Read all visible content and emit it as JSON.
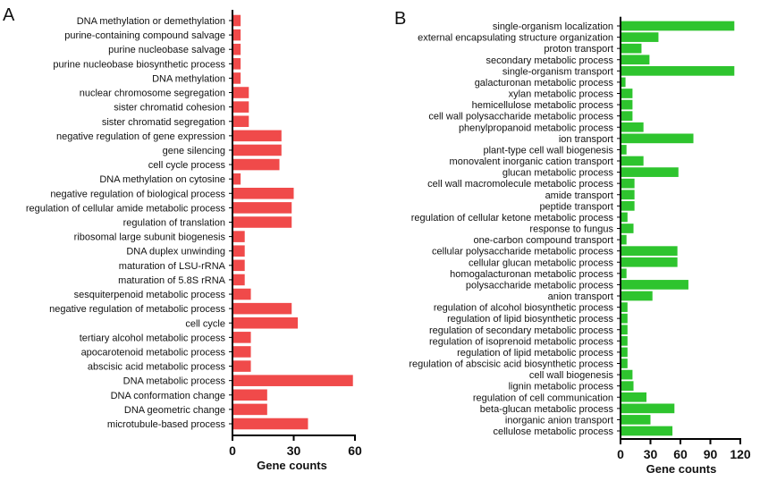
{
  "chart_data": [
    {
      "type": "bar",
      "orientation": "horizontal",
      "panel_label": "A",
      "xlabel": "Gene counts",
      "ylabel": "",
      "xlim": [
        0,
        60
      ],
      "xticks": [
        "0",
        "30",
        "60"
      ],
      "grid": false,
      "color": "#f04a4a",
      "categories": [
        "DNA methylation or demethylation",
        "purine-containing compound salvage",
        "purine nucleobase salvage",
        "purine nucleobase biosynthetic process",
        "DNA methylation",
        "nuclear chromosome segregation",
        "sister chromatid cohesion",
        "sister chromatid segregation",
        "negative regulation of gene expression",
        "gene silencing",
        "cell cycle process",
        "DNA methylation on cytosine",
        "negative regulation of biological process",
        "regulation of cellular amide metabolic process",
        "regulation of translation",
        "ribosomal large subunit biogenesis",
        "DNA duplex unwinding",
        "maturation of LSU-rRNA",
        "maturation of 5.8S rRNA",
        "sesquiterpenoid metabolic process",
        "negative regulation of metabolic process",
        "cell cycle",
        "tertiary alcohol metabolic process",
        "apocarotenoid metabolic process",
        "abscisic acid metabolic process",
        "DNA metabolic process",
        "DNA conformation change",
        "DNA geometric change",
        "microtubule-based process"
      ],
      "values": [
        4,
        4,
        4,
        4,
        4,
        8,
        8,
        8,
        24,
        24,
        23,
        4,
        30,
        29,
        29,
        6,
        6,
        6,
        6,
        9,
        29,
        32,
        9,
        9,
        9,
        59,
        17,
        17,
        37
      ]
    },
    {
      "type": "bar",
      "orientation": "horizontal",
      "panel_label": "B",
      "xlabel": "Gene counts",
      "ylabel": "",
      "xlim": [
        0,
        120
      ],
      "xticks": [
        "0",
        "30",
        "60",
        "90",
        "120"
      ],
      "grid": false,
      "color": "#2ec42e",
      "categories": [
        "single-organism localization",
        "external encapsulating structure organization",
        "proton transport",
        "secondary metabolic process",
        "single-organism transport",
        "galacturonan metabolic process",
        "xylan metabolic process",
        "hemicellulose metabolic process",
        "cell wall polysaccharide metabolic process",
        "phenylpropanoid metabolic process",
        "ion transport",
        "plant-type cell wall biogenesis",
        "monovalent inorganic cation transport",
        "glucan metabolic process",
        "cell wall macromolecule metabolic process",
        "amide transport",
        "peptide transport",
        "regulation of cellular ketone metabolic process",
        "response to fungus",
        "one-carbon compound transport",
        "cellular polysaccharide metabolic process",
        "cellular glucan metabolic process",
        "homogalacturonan metabolic process",
        "polysaccharide metabolic process",
        "anion transport",
        "regulation of alcohol biosynthetic process",
        "regulation of lipid biosynthetic process",
        "regulation of secondary metabolic process",
        "regulation of isoprenoid metabolic process",
        "regulation of lipid metabolic process",
        "regulation of abscisic acid biosynthetic process",
        "cell wall biogenesis",
        "lignin metabolic process",
        "regulation of cell communication",
        "beta-glucan metabolic process",
        "inorganic anion transport",
        "cellulose metabolic process"
      ],
      "values": [
        114,
        38,
        21,
        29,
        114,
        5,
        12,
        12,
        12,
        23,
        73,
        6,
        23,
        58,
        14,
        14,
        14,
        7,
        13,
        6,
        57,
        57,
        6,
        68,
        32,
        7,
        7,
        7,
        7,
        7,
        7,
        12,
        13,
        26,
        54,
        30,
        52
      ]
    }
  ]
}
